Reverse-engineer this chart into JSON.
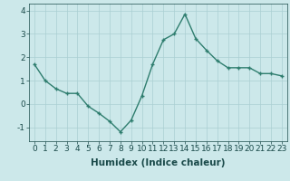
{
  "x": [
    0,
    1,
    2,
    3,
    4,
    5,
    6,
    7,
    8,
    9,
    10,
    11,
    12,
    13,
    14,
    15,
    16,
    17,
    18,
    19,
    20,
    21,
    22,
    23
  ],
  "y": [
    1.7,
    1.0,
    0.65,
    0.45,
    0.45,
    -0.1,
    -0.4,
    -0.75,
    -1.2,
    -0.7,
    0.35,
    1.7,
    2.75,
    3.0,
    3.85,
    2.8,
    2.3,
    1.85,
    1.55,
    1.55,
    1.55,
    1.3,
    1.3,
    1.2
  ],
  "line_color": "#2e7d6e",
  "marker": "+",
  "marker_size": 3.5,
  "line_width": 1.0,
  "bg_color": "#cce8ea",
  "grid_color": "#aacfd2",
  "axis_label_color": "#1a4a4a",
  "tick_color": "#1a4a4a",
  "xlabel": "Humidex (Indice chaleur)",
  "ylim": [
    -1.6,
    4.3
  ],
  "yticks": [
    -1,
    0,
    1,
    2,
    3,
    4
  ],
  "xlabel_fontsize": 7.5,
  "tick_fontsize": 6.5
}
